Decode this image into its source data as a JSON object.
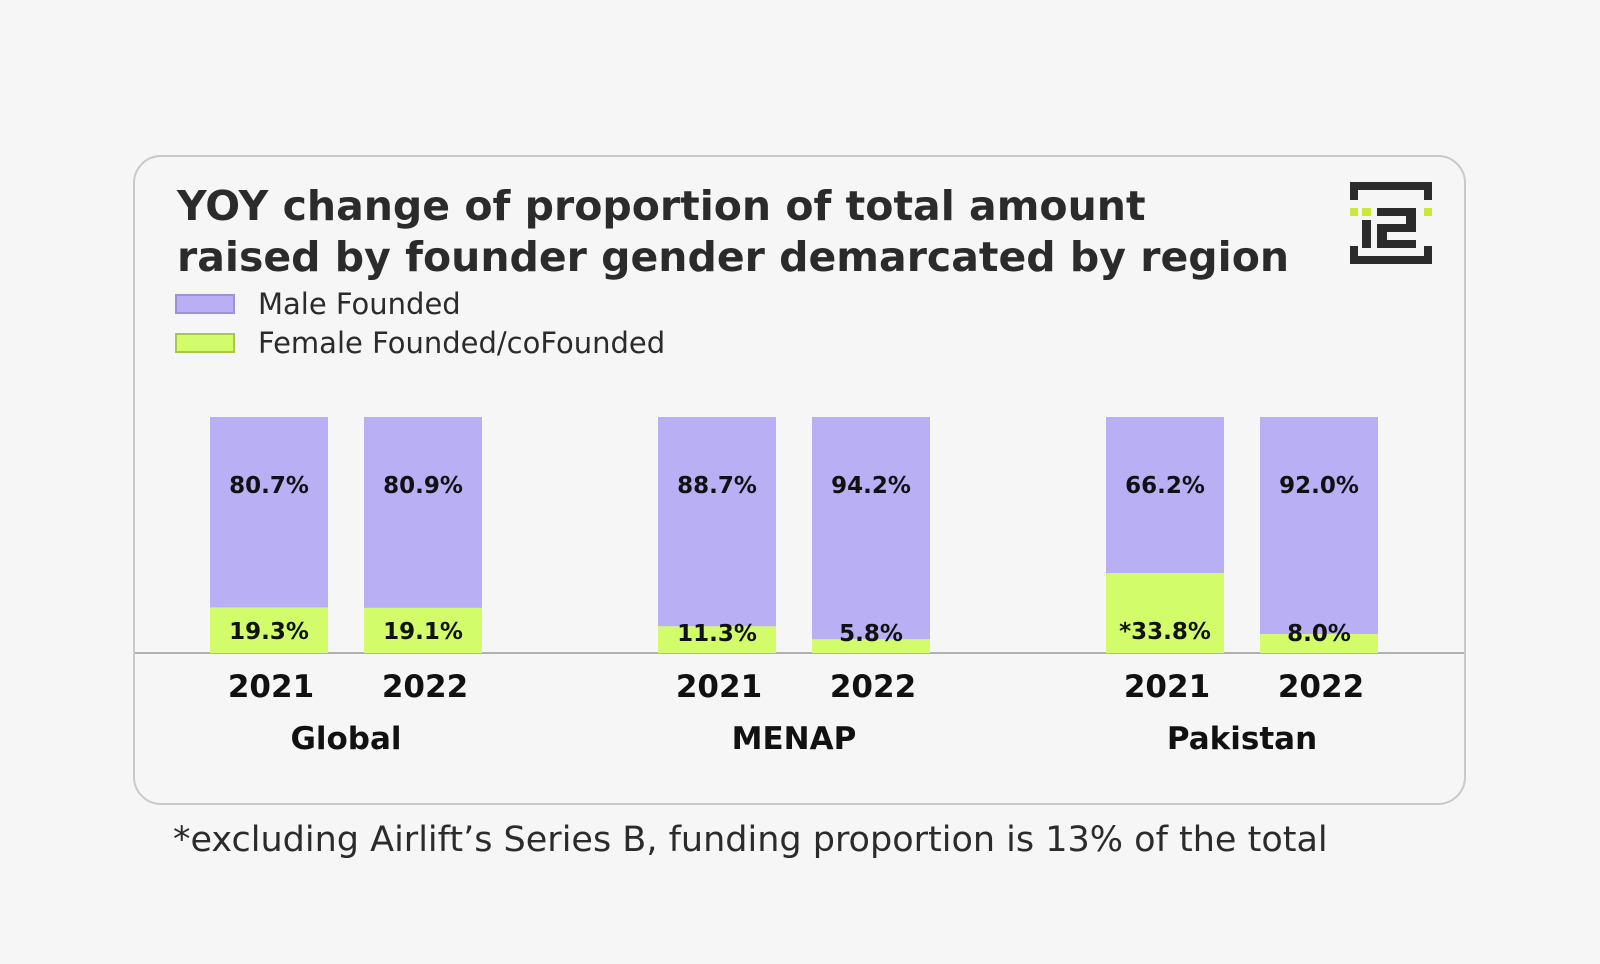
{
  "chart_data": {
    "type": "bar",
    "stacked": true,
    "title": "YOY change of proportion of total amount raised by founder gender demarcated by region",
    "unit": "%",
    "ylim": [
      0,
      100
    ],
    "grid": false,
    "legend_position": "top-left",
    "groups": [
      {
        "region": "Global",
        "years": [
          "2021",
          "2022"
        ],
        "male": [
          80.7,
          80.9
        ],
        "female": [
          19.3,
          19.1
        ],
        "male_labels": [
          "80.7%",
          "80.9%"
        ],
        "female_labels": [
          "19.3%",
          "19.1%"
        ]
      },
      {
        "region": "MENAP",
        "years": [
          "2021",
          "2022"
        ],
        "male": [
          88.7,
          94.2
        ],
        "female": [
          11.3,
          5.8
        ],
        "male_labels": [
          "88.7%",
          "94.2%"
        ],
        "female_labels": [
          "11.3%",
          "5.8%"
        ]
      },
      {
        "region": "Pakistan",
        "years": [
          "2021",
          "2022"
        ],
        "male": [
          66.2,
          92.0
        ],
        "female": [
          33.8,
          8.0
        ],
        "male_labels": [
          "66.2%",
          "92.0%"
        ],
        "female_labels": [
          "*33.8%",
          "8.0%"
        ]
      }
    ],
    "series": [
      {
        "name": "Male Founded",
        "color": "#b8aff4",
        "border": "#9c92d8"
      },
      {
        "name": "Female Founded/coFounded",
        "color": "#d2fc6a",
        "border": "#a9c84a"
      }
    ]
  },
  "logo": {
    "icon": "i2-logo-icon",
    "text": "i2",
    "dark_color": "#2b2b2b",
    "accent_color": "#c8e83a"
  },
  "footnote": "*excluding Airlift’s Series B, funding proportion is 13% of the total"
}
